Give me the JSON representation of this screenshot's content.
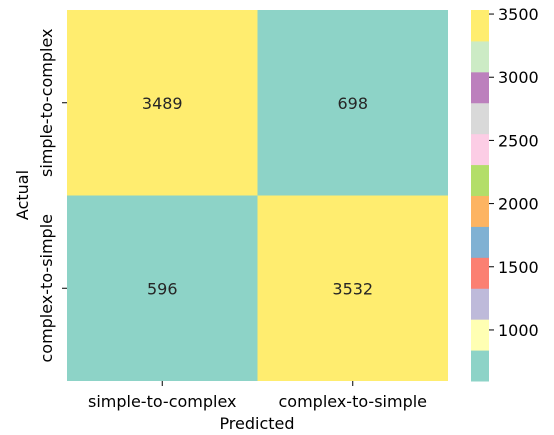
{
  "chart_data": {
    "type": "heatmap",
    "title": "",
    "xlabel": "Predicted",
    "ylabel": "Actual",
    "x_categories": [
      "simple-to-complex",
      "complex-to-simple"
    ],
    "y_categories": [
      "simple-to-complex",
      "complex-to-simple"
    ],
    "values": [
      [
        3489,
        698
      ],
      [
        596,
        3532
      ]
    ],
    "value_labels": [
      [
        "3489",
        "698"
      ],
      [
        "596",
        "3532"
      ]
    ],
    "colorbar": {
      "range": [
        596,
        3532
      ],
      "ticks": [
        1000,
        1500,
        2000,
        2500,
        3000,
        3500
      ],
      "tick_labels": [
        "1000",
        "1500",
        "2000",
        "2500",
        "3000",
        "3500"
      ],
      "colors": [
        "#8dd3c7",
        "#ffffb3",
        "#bebada",
        "#fb8072",
        "#80b1d3",
        "#fdb462",
        "#b3de69",
        "#fccde5",
        "#d9d9d9",
        "#bc80bd",
        "#ccebc5",
        "#ffed6f"
      ]
    }
  }
}
